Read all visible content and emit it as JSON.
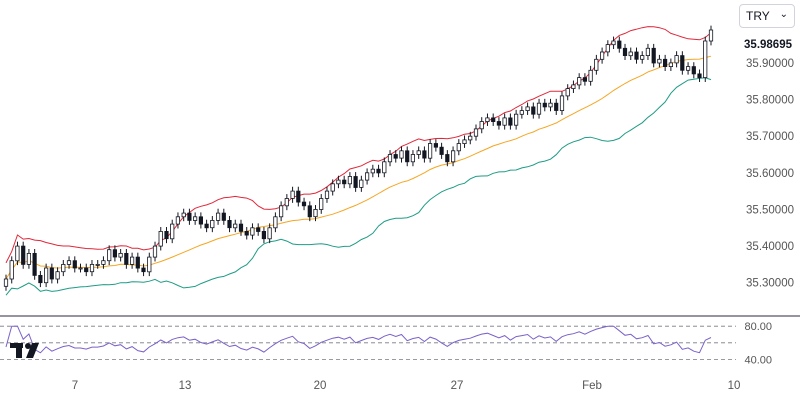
{
  "currency_select": {
    "value": "TRY",
    "chevron_icon": "chevron-down-icon"
  },
  "logo_icon": "tradingview-logo-icon",
  "colors": {
    "upper_band": "#e0283a",
    "middle_band": "#f5a623",
    "lower_band": "#1e9c86",
    "rsi_line": "#7b61c9",
    "candle_up": "#ffffff",
    "candle_down": "#131722",
    "price_tag_bg": "#ffffff",
    "price_tag_text": "#131722",
    "axis_text": "#555555"
  },
  "chart_data": {
    "type": "candlestick",
    "title": "",
    "last_price_label": "35.98695",
    "price_axis": {
      "range": [
        35.22,
        36.05
      ],
      "ticks": [
        "35.90000",
        "35.80000",
        "35.70000",
        "35.60000",
        "35.50000",
        "35.40000",
        "35.30000"
      ]
    },
    "rsi_axis": {
      "range": [
        25,
        85
      ],
      "ticks": [
        "80.00",
        "40.00"
      ],
      "upper_level": 80,
      "middle_level": 60,
      "lower_level": 40
    },
    "time_axis": {
      "labels": [
        "7",
        "13",
        "20",
        "27",
        "Feb",
        "10"
      ]
    },
    "grid": false,
    "series": [
      {
        "kind": "close",
        "values": [
          35.31,
          35.36,
          35.4,
          35.35,
          35.38,
          35.32,
          35.3,
          35.34,
          35.31,
          35.33,
          35.35,
          35.36,
          35.34,
          35.34,
          35.33,
          35.35,
          35.35,
          35.36,
          35.39,
          35.37,
          35.38,
          35.35,
          35.37,
          35.34,
          35.33,
          35.37,
          35.4,
          35.44,
          35.42,
          35.46,
          35.48,
          35.49,
          35.47,
          35.48,
          35.46,
          35.45,
          35.47,
          35.49,
          35.47,
          35.45,
          35.46,
          35.44,
          35.43,
          35.45,
          35.44,
          35.42,
          35.45,
          35.48,
          35.51,
          35.53,
          35.55,
          35.52,
          35.51,
          35.48,
          35.5,
          35.53,
          35.55,
          35.57,
          35.58,
          35.57,
          35.59,
          35.56,
          35.58,
          35.6,
          35.61,
          35.6,
          35.63,
          35.65,
          35.64,
          35.66,
          35.63,
          35.65,
          35.66,
          35.64,
          35.68,
          35.67,
          35.65,
          35.63,
          35.66,
          35.68,
          35.69,
          35.7,
          35.72,
          35.74,
          35.75,
          35.74,
          35.73,
          35.75,
          35.73,
          35.76,
          35.77,
          35.78,
          35.76,
          35.79,
          35.78,
          35.79,
          35.77,
          35.81,
          35.83,
          35.84,
          35.86,
          35.85,
          35.88,
          35.91,
          35.93,
          35.95,
          35.96,
          35.94,
          35.92,
          35.93,
          35.91,
          35.92,
          35.94,
          35.9,
          35.91,
          35.89,
          35.9,
          35.92,
          35.88,
          35.89,
          35.87,
          35.86,
          35.96,
          35.99
        ]
      },
      {
        "kind": "bollinger_upper",
        "name": ""
      },
      {
        "kind": "bollinger_middle",
        "name": ""
      },
      {
        "kind": "bollinger_lower",
        "name": ""
      },
      {
        "kind": "rsi",
        "name": ""
      }
    ]
  }
}
